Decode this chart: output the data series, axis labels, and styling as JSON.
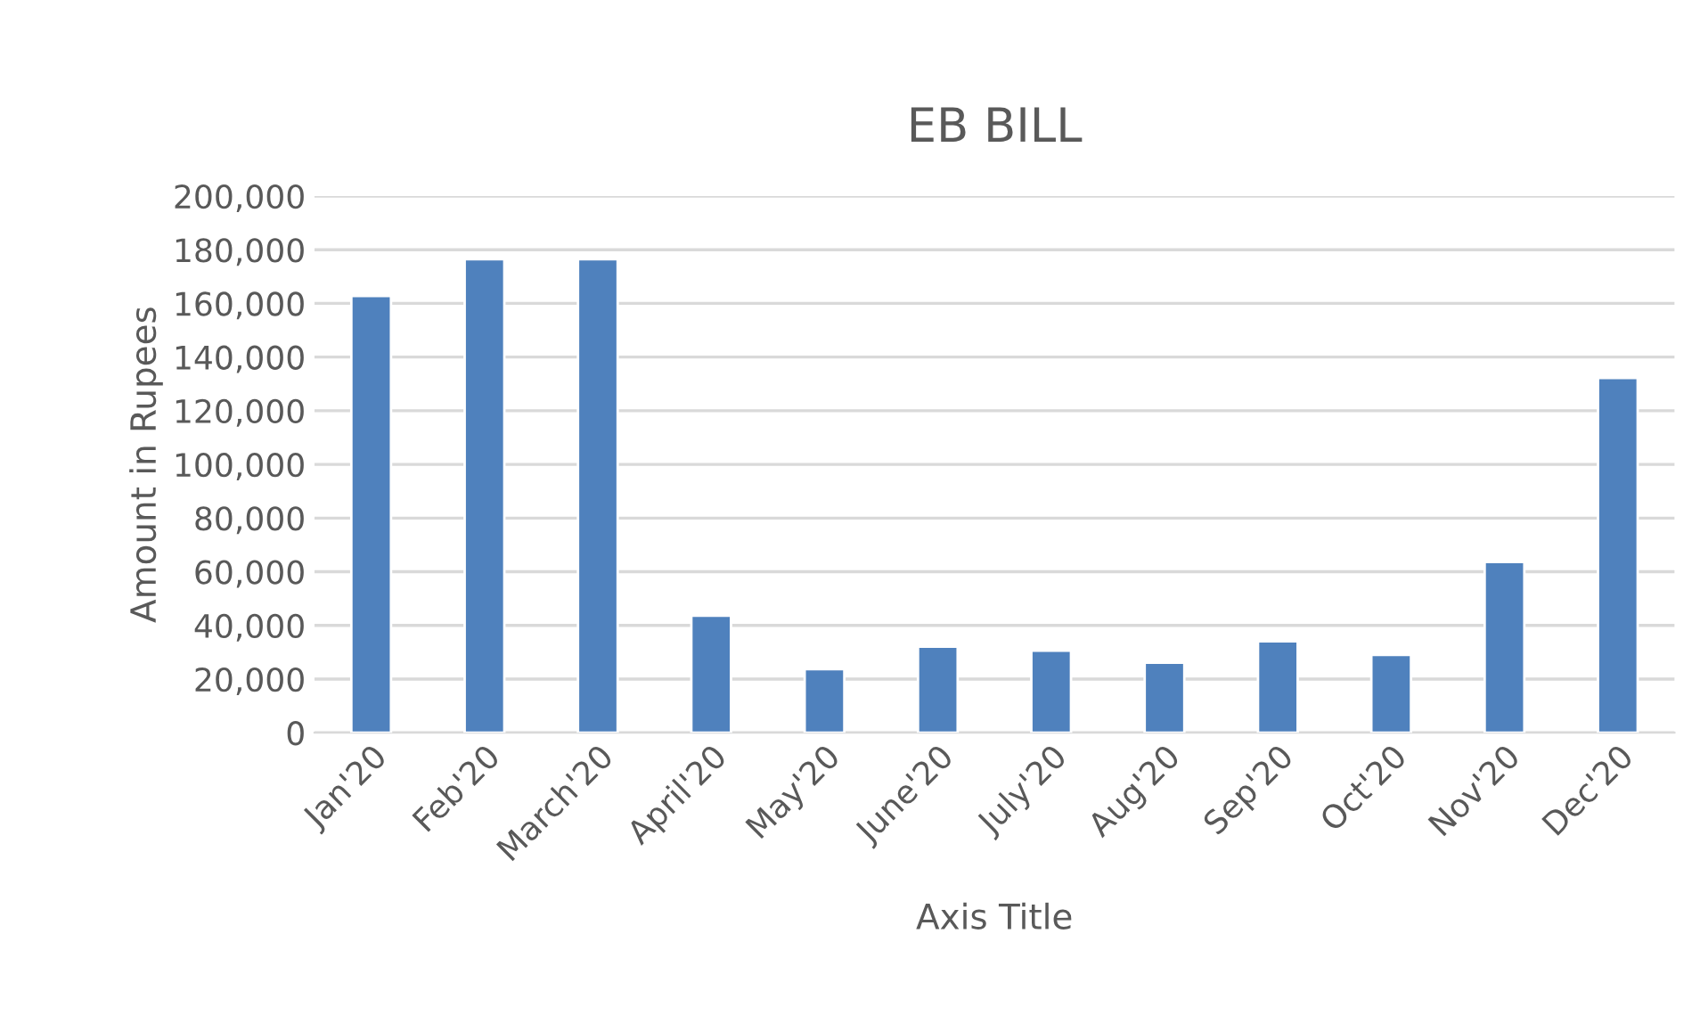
{
  "chart_data": {
    "type": "bar",
    "title": "EB BILL",
    "xlabel": "Axis Title",
    "ylabel": "Amount in Rupees",
    "categories": [
      "Jan'20",
      "Feb'20",
      "March'20",
      "April'20",
      "May'20",
      "June'20",
      "July'20",
      "Aug'20",
      "Sep'20",
      "Oct'20",
      "Nov'20",
      "Dec'20"
    ],
    "values": [
      162800,
      176500,
      176500,
      43600,
      23700,
      32100,
      30600,
      26100,
      34100,
      29000,
      63600,
      132200
    ],
    "color": "#4f81bd",
    "ylim": [
      0,
      200000
    ],
    "yticks": [
      {
        "value": 0,
        "label": "0"
      },
      {
        "value": 20000,
        "label": "20,000"
      },
      {
        "value": 40000,
        "label": "40,000"
      },
      {
        "value": 60000,
        "label": "60,000"
      },
      {
        "value": 80000,
        "label": "80,000"
      },
      {
        "value": 100000,
        "label": "100,000"
      },
      {
        "value": 120000,
        "label": "120,000"
      },
      {
        "value": 140000,
        "label": "140,000"
      },
      {
        "value": 160000,
        "label": "160,000"
      },
      {
        "value": 180000,
        "label": "180,000"
      },
      {
        "value": 200000,
        "label": "200,000"
      }
    ],
    "grid": "y"
  }
}
